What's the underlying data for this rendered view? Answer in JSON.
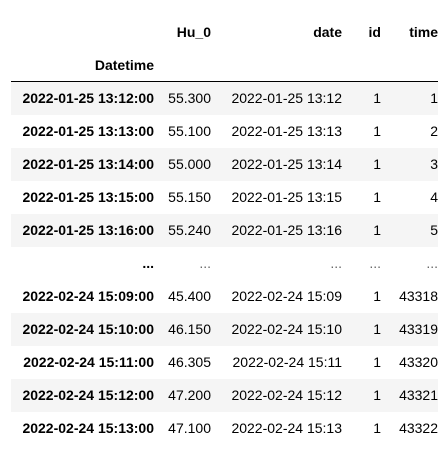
{
  "dataframe": {
    "columns": {
      "hu": "Hu_0",
      "date": "date",
      "id": "id",
      "time": "time"
    },
    "index_name": "Datetime",
    "rows": [
      {
        "index": "2022-01-25 13:12:00",
        "hu": "55.300",
        "date": "2022-01-25 13:12",
        "id": "1",
        "time": "1"
      },
      {
        "index": "2022-01-25 13:13:00",
        "hu": "55.100",
        "date": "2022-01-25 13:13",
        "id": "1",
        "time": "2"
      },
      {
        "index": "2022-01-25 13:14:00",
        "hu": "55.000",
        "date": "2022-01-25 13:14",
        "id": "1",
        "time": "3"
      },
      {
        "index": "2022-01-25 13:15:00",
        "hu": "55.150",
        "date": "2022-01-25 13:15",
        "id": "1",
        "time": "4"
      },
      {
        "index": "2022-01-25 13:16:00",
        "hu": "55.240",
        "date": "2022-01-25 13:16",
        "id": "1",
        "time": "5"
      },
      {
        "index": "...",
        "hu": "...",
        "date": "...",
        "id": "...",
        "time": "..."
      },
      {
        "index": "2022-02-24 15:09:00",
        "hu": "45.400",
        "date": "2022-02-24 15:09",
        "id": "1",
        "time": "43318"
      },
      {
        "index": "2022-02-24 15:10:00",
        "hu": "46.150",
        "date": "2022-02-24 15:10",
        "id": "1",
        "time": "43319"
      },
      {
        "index": "2022-02-24 15:11:00",
        "hu": "46.305",
        "date": "2022-02-24 15:11",
        "id": "1",
        "time": "43320"
      },
      {
        "index": "2022-02-24 15:12:00",
        "hu": "47.200",
        "date": "2022-02-24 15:12",
        "id": "1",
        "time": "43321"
      },
      {
        "index": "2022-02-24 15:13:00",
        "hu": "47.100",
        "date": "2022-02-24 15:13",
        "id": "1",
        "time": "43322"
      }
    ]
  }
}
